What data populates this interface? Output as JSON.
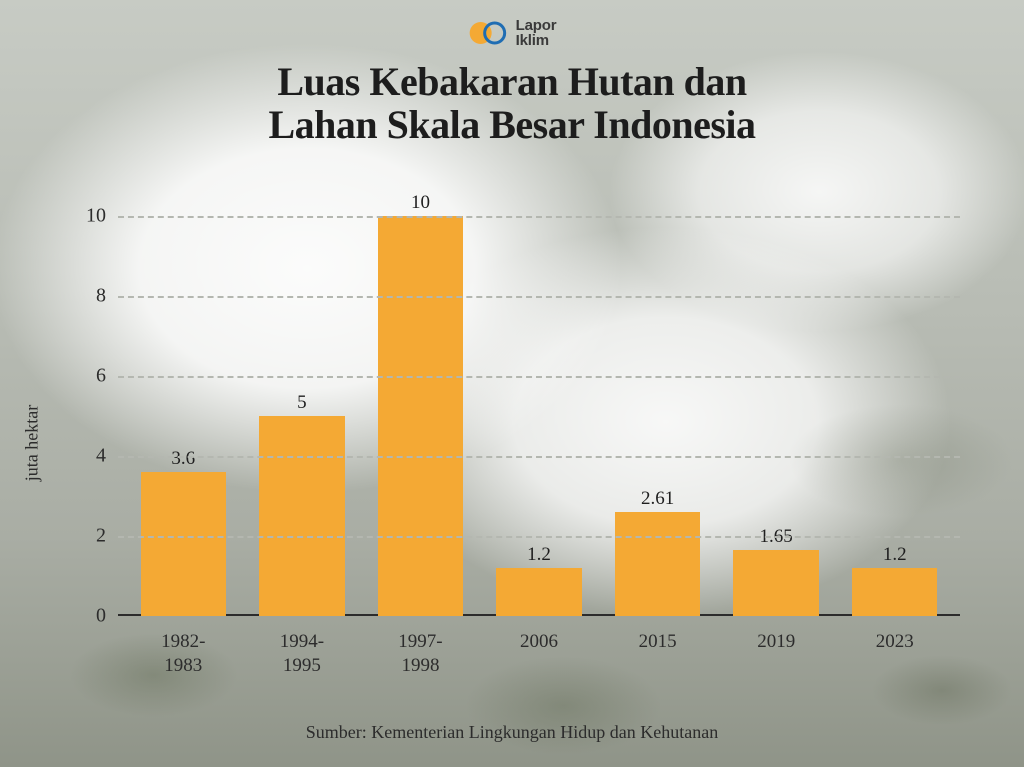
{
  "logo": {
    "line1": "Lapor",
    "line2": "Iklim",
    "circle1_fill": "#f4a934",
    "circle2_stroke": "#1f6db3",
    "text_color": "#3a3a3a"
  },
  "title": {
    "line1": "Luas Kebakaran Hutan dan",
    "line2": "Lahan Skala Besar Indonesia",
    "fontsize": 40,
    "color": "#1d1d1d"
  },
  "chart": {
    "type": "bar",
    "ylabel": "juta hektar",
    "ylabel_fontsize": 18,
    "ylim": [
      0,
      10.2
    ],
    "yticks": [
      0,
      2,
      4,
      6,
      8,
      10
    ],
    "ytick_fontsize": 20,
    "grid_color": "#b4b7b0",
    "grid_dash": "dashed",
    "axis_color": "#2c2c2c",
    "bar_color": "#f4a934",
    "bar_width_ratio": 0.72,
    "bar_label_fontsize": 19,
    "xtick_fontsize": 19,
    "categories": [
      {
        "label_line1": "1982-",
        "label_line2": "1983",
        "value": 3.6,
        "value_label": "3.6"
      },
      {
        "label_line1": "1994-",
        "label_line2": "1995",
        "value": 5,
        "value_label": "5"
      },
      {
        "label_line1": "1997-",
        "label_line2": "1998",
        "value": 10,
        "value_label": "10"
      },
      {
        "label_line1": "2006",
        "label_line2": "",
        "value": 1.2,
        "value_label": "1.2"
      },
      {
        "label_line1": "2015",
        "label_line2": "",
        "value": 2.61,
        "value_label": "2.61"
      },
      {
        "label_line1": "2019",
        "label_line2": "",
        "value": 1.65,
        "value_label": "1.65"
      },
      {
        "label_line1": "2023",
        "label_line2": "",
        "value": 1.2,
        "value_label": "1.2"
      }
    ]
  },
  "source": {
    "text": "Sumber: Kementerian Lingkungan Hidup dan Kehutanan",
    "fontsize": 18,
    "color": "#2c2c2c"
  },
  "background": {
    "base_gradient_top": "#c7cbc4",
    "base_gradient_bottom": "#8f9488",
    "smoke_color": "#ffffff"
  }
}
